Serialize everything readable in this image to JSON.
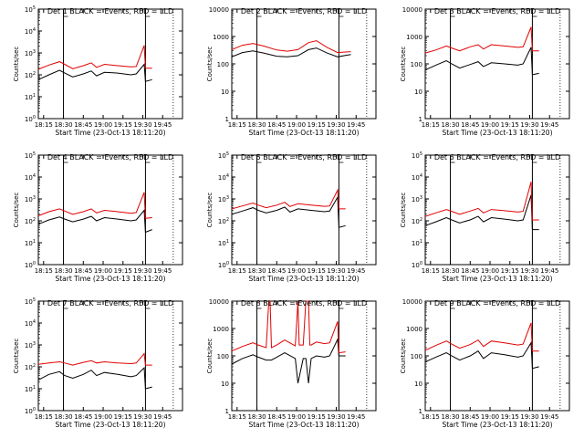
{
  "figure": {
    "title_template": "Det {n} BLACK = Events, RED = LLD",
    "xlabel": "Start Time (23-Oct-13 18:11:20)",
    "ylabel": "Counts/sec",
    "colors": {
      "events": "#000000",
      "lld": "#e00000"
    }
  },
  "chart_data": [
    {
      "type": "line",
      "panel": 1,
      "title": "Det 1 BLACK = Events, RED = LLD",
      "xlabel": "Start Time (23-Oct-13 18:11:20)",
      "ylabel": "Counts/sec",
      "y_scale": "log",
      "ylim": [
        1,
        100000
      ],
      "y_tick_labels": [
        "10^0",
        "10^1",
        "10^2",
        "10^3",
        "10^4",
        "10^5"
      ],
      "x_tick_labels": [
        "18:15",
        "18:30",
        "18:45",
        "19:00",
        "19:15",
        "19:30",
        "19:45"
      ],
      "x_ticks_min": [
        0,
        15,
        30,
        45,
        60,
        75,
        90
      ],
      "xlim_min": [
        -4,
        105
      ],
      "vlines_solid_min": [
        15,
        77
      ],
      "vlines_dotted_min": [
        98
      ],
      "series": [
        {
          "key": "events",
          "x_min": [
            -4,
            4,
            12,
            16,
            22,
            30,
            36,
            40,
            46,
            56,
            66,
            70,
            76,
            77,
            82
          ],
          "values": [
            60,
            100,
            160,
            120,
            80,
            110,
            150,
            90,
            130,
            120,
            100,
            110,
            300,
            50,
            60
          ]
        },
        {
          "key": "lld",
          "x_min": [
            -4,
            4,
            12,
            16,
            22,
            30,
            36,
            40,
            46,
            56,
            66,
            70,
            76,
            77,
            82
          ],
          "values": [
            180,
            280,
            400,
            300,
            190,
            260,
            350,
            220,
            300,
            260,
            230,
            240,
            2200,
            200,
            200
          ]
        }
      ]
    },
    {
      "type": "line",
      "panel": 2,
      "title": "Det 2 BLACK = Events, RED = LLD",
      "xlabel": "Start Time (23-Oct-13 18:11:20)",
      "ylabel": "Counts/sec",
      "y_scale": "log",
      "ylim": [
        1,
        10000
      ],
      "y_tick_labels": [
        "1",
        "10",
        "100",
        "1000",
        "10000"
      ],
      "x_tick_labels": [
        "18:15",
        "18:30",
        "18:45",
        "19:00",
        "19:15",
        "19:30",
        "19:45"
      ],
      "x_ticks_min": [
        0,
        15,
        30,
        45,
        60,
        75,
        90
      ],
      "xlim_min": [
        -4,
        105
      ],
      "vlines_solid_min": [
        15,
        77
      ],
      "vlines_dotted_min": [
        98
      ],
      "series": [
        {
          "key": "events",
          "x_min": [
            -4,
            4,
            12,
            20,
            30,
            38,
            46,
            54,
            60,
            68,
            76,
            86
          ],
          "values": [
            180,
            260,
            300,
            250,
            190,
            180,
            200,
            330,
            380,
            250,
            180,
            220
          ]
        },
        {
          "key": "lld",
          "x_min": [
            -4,
            4,
            12,
            20,
            30,
            38,
            46,
            54,
            60,
            68,
            76,
            86
          ],
          "values": [
            330,
            480,
            560,
            450,
            320,
            290,
            330,
            600,
            700,
            400,
            260,
            280
          ]
        }
      ]
    },
    {
      "type": "line",
      "panel": 3,
      "title": "Det 3 BLACK = Events, RED = LLD",
      "xlabel": "Start Time (23-Oct-13 18:11:20)",
      "ylabel": "Counts/sec",
      "y_scale": "log",
      "ylim": [
        1,
        10000
      ],
      "y_tick_labels": [
        "1",
        "10",
        "100",
        "1000",
        "10000"
      ],
      "x_tick_labels": [
        "18:15",
        "18:30",
        "18:45",
        "19:00",
        "19:15",
        "19:30",
        "19:45"
      ],
      "x_ticks_min": [
        0,
        15,
        30,
        45,
        60,
        75,
        90
      ],
      "xlim_min": [
        -4,
        105
      ],
      "vlines_solid_min": [
        15,
        77
      ],
      "vlines_dotted_min": [
        98
      ],
      "series": [
        {
          "key": "events",
          "x_min": [
            -4,
            4,
            12,
            16,
            22,
            30,
            36,
            40,
            46,
            56,
            66,
            70,
            76,
            77,
            82
          ],
          "values": [
            60,
            90,
            130,
            100,
            70,
            95,
            120,
            80,
            110,
            100,
            90,
            100,
            400,
            40,
            45
          ]
        },
        {
          "key": "lld",
          "x_min": [
            -4,
            4,
            12,
            16,
            22,
            30,
            36,
            40,
            46,
            56,
            66,
            70,
            76,
            77,
            82
          ],
          "values": [
            250,
            320,
            450,
            380,
            300,
            420,
            500,
            350,
            500,
            450,
            400,
            420,
            2200,
            300,
            300
          ]
        }
      ]
    },
    {
      "type": "line",
      "panel": 4,
      "title": "Det 4 BLACK = Events, RED = LLD",
      "xlabel": "Start Time (23-Oct-13 18:11:20)",
      "ylabel": "Counts/sec",
      "y_scale": "log",
      "ylim": [
        1,
        100000
      ],
      "y_tick_labels": [
        "10^0",
        "10^1",
        "10^2",
        "10^3",
        "10^4",
        "10^5"
      ],
      "x_tick_labels": [
        "18:15",
        "18:30",
        "18:45",
        "19:00",
        "19:15",
        "19:30",
        "19:45"
      ],
      "x_ticks_min": [
        0,
        15,
        30,
        45,
        60,
        75,
        90
      ],
      "xlim_min": [
        -4,
        105
      ],
      "vlines_solid_min": [
        15,
        77
      ],
      "vlines_dotted_min": [
        98
      ],
      "series": [
        {
          "key": "events",
          "x_min": [
            -4,
            4,
            12,
            16,
            22,
            30,
            36,
            40,
            46,
            56,
            66,
            70,
            76,
            77,
            82
          ],
          "values": [
            70,
            110,
            150,
            120,
            90,
            120,
            160,
            100,
            140,
            120,
            100,
            110,
            300,
            30,
            40
          ]
        },
        {
          "key": "lld",
          "x_min": [
            -4,
            4,
            12,
            16,
            22,
            30,
            36,
            40,
            46,
            56,
            66,
            70,
            76,
            77,
            82
          ],
          "values": [
            170,
            260,
            350,
            280,
            200,
            260,
            350,
            230,
            300,
            260,
            220,
            240,
            2000,
            130,
            140
          ]
        }
      ]
    },
    {
      "type": "line",
      "panel": 5,
      "title": "Det 5 BLACK = Events, RED = LLD",
      "xlabel": "Start Time (23-Oct-13 18:11:20)",
      "ylabel": "Counts/sec",
      "y_scale": "log",
      "ylim": [
        1,
        100000
      ],
      "y_tick_labels": [
        "10^0",
        "10^1",
        "10^2",
        "10^3",
        "10^4",
        "10^5"
      ],
      "x_tick_labels": [
        "18:15",
        "18:30",
        "18:45",
        "19:00",
        "19:15",
        "19:30",
        "19:45"
      ],
      "x_ticks_min": [
        0,
        15,
        30,
        45,
        60,
        75,
        90
      ],
      "xlim_min": [
        -4,
        105
      ],
      "vlines_solid_min": [
        15,
        77
      ],
      "vlines_dotted_min": [
        98
      ],
      "series": [
        {
          "key": "events",
          "x_min": [
            -4,
            4,
            12,
            16,
            22,
            30,
            36,
            40,
            46,
            56,
            66,
            70,
            76,
            77,
            82
          ],
          "values": [
            200,
            280,
            400,
            300,
            230,
            300,
            420,
            250,
            350,
            300,
            260,
            280,
            1200,
            50,
            60
          ]
        },
        {
          "key": "lld",
          "x_min": [
            -4,
            4,
            12,
            16,
            22,
            30,
            36,
            40,
            46,
            56,
            66,
            70,
            76,
            77,
            82
          ],
          "values": [
            350,
            480,
            650,
            520,
            400,
            520,
            700,
            450,
            600,
            520,
            460,
            480,
            2500,
            350,
            350
          ]
        }
      ]
    },
    {
      "type": "line",
      "panel": 6,
      "title": "Det 6 BLACK = Events, RED = LLD",
      "xlabel": "Start Time (23-Oct-13 18:11:20)",
      "ylabel": "Counts/sec",
      "y_scale": "log",
      "ylim": [
        1,
        100000
      ],
      "y_tick_labels": [
        "10^0",
        "10^1",
        "10^2",
        "10^3",
        "10^4",
        "10^5"
      ],
      "x_tick_labels": [
        "18:15",
        "18:30",
        "18:45",
        "19:00",
        "19:15",
        "19:30",
        "19:45"
      ],
      "x_ticks_min": [
        0,
        15,
        30,
        45,
        60,
        75,
        90
      ],
      "xlim_min": [
        -4,
        105
      ],
      "vlines_solid_min": [
        15,
        77
      ],
      "vlines_dotted_min": [
        98
      ],
      "series": [
        {
          "key": "events",
          "x_min": [
            -4,
            4,
            12,
            16,
            22,
            30,
            36,
            40,
            46,
            56,
            66,
            70,
            76,
            77,
            82
          ],
          "values": [
            60,
            90,
            140,
            110,
            80,
            110,
            160,
            90,
            140,
            120,
            100,
            110,
            1500,
            40,
            40
          ]
        },
        {
          "key": "lld",
          "x_min": [
            -4,
            4,
            12,
            16,
            22,
            30,
            36,
            40,
            46,
            56,
            66,
            70,
            76,
            77,
            82
          ],
          "values": [
            160,
            230,
            330,
            270,
            200,
            280,
            370,
            230,
            330,
            290,
            250,
            270,
            6000,
            110,
            110
          ]
        }
      ]
    },
    {
      "type": "line",
      "panel": 7,
      "title": "Det 7 BLACK = Events, RED = LLD",
      "xlabel": "Start Time (23-Oct-13 18:11:20)",
      "ylabel": "Counts/sec",
      "y_scale": "log",
      "ylim": [
        1,
        100000
      ],
      "y_tick_labels": [
        "10^0",
        "10^1",
        "10^2",
        "10^3",
        "10^4",
        "10^5"
      ],
      "x_tick_labels": [
        "18:15",
        "18:30",
        "18:45",
        "19:00",
        "19:15",
        "19:30",
        "19:45"
      ],
      "x_ticks_min": [
        0,
        15,
        30,
        45,
        60,
        75,
        90
      ],
      "xlim_min": [
        -4,
        105
      ],
      "vlines_solid_min": [
        15,
        77
      ],
      "vlines_dotted_min": [
        98
      ],
      "series": [
        {
          "key": "events",
          "x_min": [
            -4,
            4,
            12,
            16,
            22,
            30,
            36,
            40,
            46,
            56,
            66,
            70,
            76,
            77,
            82
          ],
          "values": [
            25,
            45,
            60,
            40,
            30,
            45,
            70,
            40,
            55,
            45,
            35,
            40,
            90,
            10,
            12
          ]
        },
        {
          "key": "lld",
          "x_min": [
            -4,
            4,
            12,
            16,
            22,
            30,
            36,
            40,
            46,
            56,
            66,
            70,
            76,
            77,
            82
          ],
          "values": [
            130,
            150,
            170,
            150,
            120,
            160,
            190,
            150,
            170,
            150,
            140,
            150,
            400,
            120,
            120
          ]
        }
      ]
    },
    {
      "type": "line",
      "panel": 8,
      "title": "Det 8 BLACK = Events, RED = LLD",
      "xlabel": "Start Time (23-Oct-13 18:11:20)",
      "ylabel": "Counts/sec",
      "y_scale": "log",
      "ylim": [
        1,
        10000
      ],
      "y_tick_labels": [
        "1",
        "10",
        "100",
        "1000",
        "10000"
      ],
      "x_tick_labels": [
        "18:15",
        "18:30",
        "18:45",
        "19:00",
        "19:15",
        "19:30",
        "19:45"
      ],
      "x_ticks_min": [
        0,
        15,
        30,
        45,
        60,
        75,
        90
      ],
      "xlim_min": [
        -4,
        105
      ],
      "vlines_solid_min": [
        15,
        77
      ],
      "vlines_dotted_min": [
        98
      ],
      "series": [
        {
          "key": "events",
          "x_min": [
            -4,
            4,
            12,
            16,
            22,
            24,
            26,
            30,
            36,
            44,
            46,
            50,
            52,
            54,
            56,
            60,
            66,
            70,
            76,
            77,
            82
          ],
          "values": [
            50,
            80,
            110,
            90,
            70,
            70,
            70,
            90,
            130,
            80,
            10,
            80,
            80,
            10,
            80,
            100,
            90,
            100,
            400,
            100,
            100
          ]
        },
        {
          "key": "lld",
          "x_min": [
            -4,
            4,
            12,
            16,
            22,
            24,
            25,
            26,
            30,
            36,
            44,
            46,
            47,
            50,
            52,
            54,
            55,
            56,
            60,
            66,
            70,
            76,
            77,
            82
          ],
          "values": [
            150,
            220,
            300,
            250,
            200,
            10000,
            10000,
            200,
            250,
            380,
            230,
            10000,
            250,
            250,
            10000,
            10000,
            250,
            250,
            320,
            280,
            300,
            1800,
            130,
            140
          ]
        }
      ]
    },
    {
      "type": "line",
      "panel": 9,
      "title": "Det 9 BLACK = Events, RED = LLD",
      "xlabel": "Start Time (23-Oct-13 18:11:20)",
      "ylabel": "Counts/sec",
      "y_scale": "log",
      "ylim": [
        1,
        10000
      ],
      "y_tick_labels": [
        "1",
        "10",
        "100",
        "1000",
        "10000"
      ],
      "x_tick_labels": [
        "18:15",
        "18:30",
        "18:45",
        "19:00",
        "19:15",
        "19:30",
        "19:45"
      ],
      "x_ticks_min": [
        0,
        15,
        30,
        45,
        60,
        75,
        90
      ],
      "xlim_min": [
        -4,
        105
      ],
      "vlines_solid_min": [
        15,
        77
      ],
      "vlines_dotted_min": [
        98
      ],
      "series": [
        {
          "key": "events",
          "x_min": [
            -4,
            4,
            12,
            16,
            22,
            30,
            36,
            40,
            46,
            56,
            66,
            70,
            76,
            77,
            82
          ],
          "values": [
            60,
            90,
            130,
            100,
            70,
            100,
            150,
            80,
            130,
            110,
            90,
            100,
            300,
            35,
            40
          ]
        },
        {
          "key": "lld",
          "x_min": [
            -4,
            4,
            12,
            16,
            22,
            30,
            36,
            40,
            46,
            56,
            66,
            70,
            76,
            77,
            82
          ],
          "values": [
            160,
            240,
            350,
            270,
            190,
            260,
            380,
            220,
            350,
            300,
            250,
            270,
            1600,
            150,
            150
          ]
        }
      ]
    }
  ]
}
